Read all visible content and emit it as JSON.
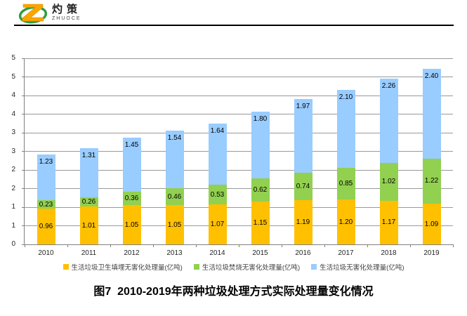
{
  "logo": {
    "brand": "灼策",
    "subtitle": "ZHUOCE"
  },
  "caption": "图7  2010-2019年两种垃圾处理方式实际处理量变化情况",
  "chart_data": {
    "type": "bar",
    "stacked": true,
    "title": "图7  2010-2019年两种垃圾处理方式实际处理量变化情况",
    "categories": [
      "2010",
      "2011",
      "2012",
      "2013",
      "2014",
      "2015",
      "2016",
      "2017",
      "2018",
      "2019"
    ],
    "series": [
      {
        "name": "生活垃圾卫生填埋无害化处理量(亿吨)",
        "color": "#FFC000",
        "label_position": "center",
        "values": [
          0.96,
          1.01,
          1.05,
          1.05,
          1.07,
          1.15,
          1.19,
          1.2,
          1.17,
          1.09
        ]
      },
      {
        "name": "生活垃圾焚烧无害化处理量(亿吨)",
        "color": "#92D050",
        "label_position": "center",
        "values": [
          0.23,
          0.26,
          0.36,
          0.46,
          0.53,
          0.62,
          0.74,
          0.85,
          1.02,
          1.22
        ]
      },
      {
        "name": "生活垃圾无害化处理量(亿吨)",
        "color": "#99CCFF",
        "label_position": "inside-end",
        "values": [
          1.23,
          1.31,
          1.45,
          1.54,
          1.64,
          1.8,
          1.97,
          2.1,
          2.26,
          2.4
        ]
      }
    ],
    "xlabel": "",
    "ylabel": "",
    "ylim": [
      0,
      5
    ],
    "ytick_step": 0.5,
    "ytick_labels_bottom_to_top": [
      "0",
      "1",
      "1",
      "2",
      "2",
      "3",
      "3",
      "4",
      "4",
      "5",
      "5"
    ],
    "value_label_decimals": 2,
    "grid": true,
    "legend_position": "bottom",
    "axis_color": "#808080",
    "grid_color": "#999999",
    "label_color": "#000000",
    "tick_label_color": "#262626"
  }
}
